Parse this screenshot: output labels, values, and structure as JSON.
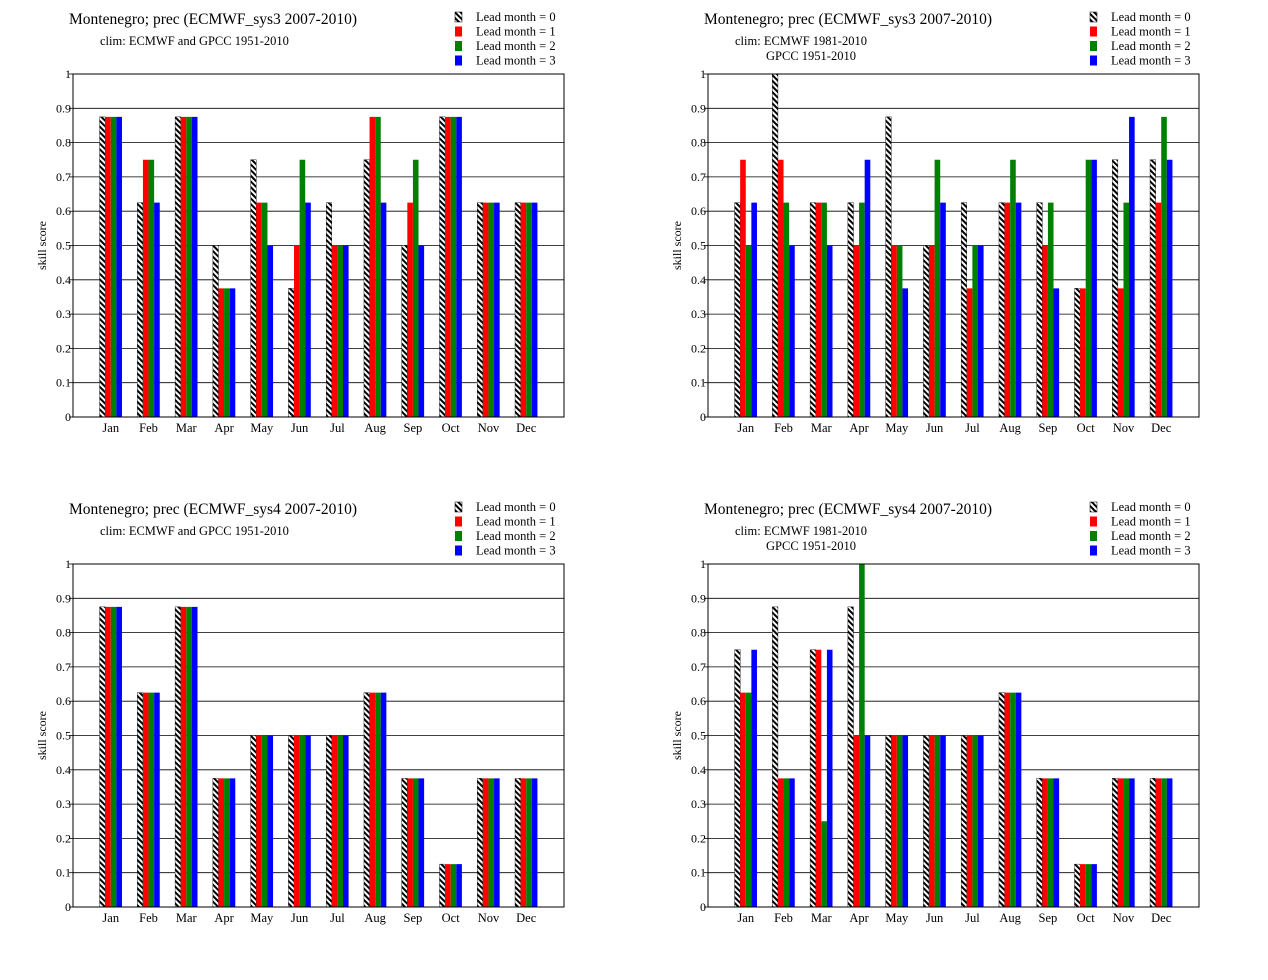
{
  "legend_labels": [
    "Lead month = 0",
    "Lead month = 1",
    "Lead month = 2",
    "Lead month = 3"
  ],
  "colors": {
    "lead0": "hatched black/white",
    "lead1": "#ff0000",
    "lead2": "#008000",
    "lead3": "#0000ff"
  },
  "chart_data": [
    {
      "type": "bar",
      "title": "Montenegro; prec (ECMWF_sys3 2007-2010)",
      "subtitle_lines": [
        "clim: ECMWF and GPCC 1951-2010"
      ],
      "xlabel": "",
      "ylabel": "skill score",
      "ylim": [
        0,
        1
      ],
      "yticks": [
        "0",
        "0.1",
        "0.2",
        "0.3",
        "0.4",
        "0.5",
        "0.6",
        "0.7",
        "0.8",
        "0.9",
        "1"
      ],
      "grid": true,
      "legend_position": "top-right",
      "categories": [
        "Jan",
        "Feb",
        "Mar",
        "Apr",
        "May",
        "Jun",
        "Jul",
        "Aug",
        "Sep",
        "Oct",
        "Nov",
        "Dec"
      ],
      "series": [
        {
          "name": "Lead month = 0",
          "values": [
            0.875,
            0.625,
            0.875,
            0.5,
            0.75,
            0.375,
            0.625,
            0.75,
            0.5,
            0.875,
            0.625,
            0.625
          ]
        },
        {
          "name": "Lead month = 1",
          "values": [
            0.875,
            0.75,
            0.875,
            0.375,
            0.625,
            0.5,
            0.5,
            0.875,
            0.625,
            0.875,
            0.625,
            0.625
          ]
        },
        {
          "name": "Lead month = 2",
          "values": [
            0.875,
            0.75,
            0.875,
            0.375,
            0.625,
            0.75,
            0.5,
            0.875,
            0.75,
            0.875,
            0.625,
            0.625
          ]
        },
        {
          "name": "Lead month = 3",
          "values": [
            0.875,
            0.625,
            0.875,
            0.375,
            0.5,
            0.625,
            0.5,
            0.625,
            0.5,
            0.875,
            0.625,
            0.625
          ]
        }
      ]
    },
    {
      "type": "bar",
      "title": "Montenegro; prec (ECMWF_sys3 2007-2010)",
      "subtitle_lines": [
        "clim: ECMWF 1981-2010",
        "GPCC 1951-2010"
      ],
      "xlabel": "",
      "ylabel": "skill score",
      "ylim": [
        0,
        1
      ],
      "yticks": [
        "0",
        "0.1",
        "0.2",
        "0.3",
        "0.4",
        "0.5",
        "0.6",
        "0.7",
        "0.8",
        "0.9",
        "1"
      ],
      "grid": true,
      "legend_position": "top-right",
      "categories": [
        "Jan",
        "Feb",
        "Mar",
        "Apr",
        "May",
        "Jun",
        "Jul",
        "Aug",
        "Sep",
        "Oct",
        "Nov",
        "Dec"
      ],
      "series": [
        {
          "name": "Lead month = 0",
          "values": [
            0.625,
            1.0,
            0.625,
            0.625,
            0.875,
            0.5,
            0.625,
            0.625,
            0.625,
            0.375,
            0.75,
            0.75
          ]
        },
        {
          "name": "Lead month = 1",
          "values": [
            0.75,
            0.75,
            0.625,
            0.5,
            0.5,
            0.5,
            0.375,
            0.625,
            0.5,
            0.375,
            0.375,
            0.625
          ]
        },
        {
          "name": "Lead month = 2",
          "values": [
            0.5,
            0.625,
            0.625,
            0.625,
            0.5,
            0.75,
            0.5,
            0.75,
            0.625,
            0.75,
            0.625,
            0.875
          ]
        },
        {
          "name": "Lead month = 3",
          "values": [
            0.625,
            0.5,
            0.5,
            0.75,
            0.375,
            0.625,
            0.5,
            0.625,
            0.375,
            0.75,
            0.875,
            0.75
          ]
        }
      ]
    },
    {
      "type": "bar",
      "title": "Montenegro; prec (ECMWF_sys4 2007-2010)",
      "subtitle_lines": [
        "clim: ECMWF and GPCC 1951-2010"
      ],
      "xlabel": "",
      "ylabel": "skill score",
      "ylim": [
        0,
        1
      ],
      "yticks": [
        "0",
        "0.1",
        "0.2",
        "0.3",
        "0.4",
        "0.5",
        "0.6",
        "0.7",
        "0.8",
        "0.9",
        "1"
      ],
      "grid": true,
      "legend_position": "top-right",
      "categories": [
        "Jan",
        "Feb",
        "Mar",
        "Apr",
        "May",
        "Jun",
        "Jul",
        "Aug",
        "Sep",
        "Oct",
        "Nov",
        "Dec"
      ],
      "series": [
        {
          "name": "Lead month = 0",
          "values": [
            0.875,
            0.625,
            0.875,
            0.375,
            0.5,
            0.5,
            0.5,
            0.625,
            0.375,
            0.125,
            0.375,
            0.375
          ]
        },
        {
          "name": "Lead month = 1",
          "values": [
            0.875,
            0.625,
            0.875,
            0.375,
            0.5,
            0.5,
            0.5,
            0.625,
            0.375,
            0.125,
            0.375,
            0.375
          ]
        },
        {
          "name": "Lead month = 2",
          "values": [
            0.875,
            0.625,
            0.875,
            0.375,
            0.5,
            0.5,
            0.5,
            0.625,
            0.375,
            0.125,
            0.375,
            0.375
          ]
        },
        {
          "name": "Lead month = 3",
          "values": [
            0.875,
            0.625,
            0.875,
            0.375,
            0.5,
            0.5,
            0.5,
            0.625,
            0.375,
            0.125,
            0.375,
            0.375
          ]
        }
      ]
    },
    {
      "type": "bar",
      "title": "Montenegro; prec (ECMWF_sys4 2007-2010)",
      "subtitle_lines": [
        "clim: ECMWF 1981-2010",
        "GPCC 1951-2010"
      ],
      "xlabel": "",
      "ylabel": "skill score",
      "ylim": [
        0,
        1
      ],
      "yticks": [
        "0",
        "0.1",
        "0.2",
        "0.3",
        "0.4",
        "0.5",
        "0.6",
        "0.7",
        "0.8",
        "0.9",
        "1"
      ],
      "grid": true,
      "legend_position": "top-right",
      "categories": [
        "Jan",
        "Feb",
        "Mar",
        "Apr",
        "May",
        "Jun",
        "Jul",
        "Aug",
        "Sep",
        "Oct",
        "Nov",
        "Dec"
      ],
      "series": [
        {
          "name": "Lead month = 0",
          "values": [
            0.75,
            0.875,
            0.75,
            0.875,
            0.5,
            0.5,
            0.5,
            0.625,
            0.375,
            0.125,
            0.375,
            0.375
          ]
        },
        {
          "name": "Lead month = 1",
          "values": [
            0.625,
            0.375,
            0.75,
            0.5,
            0.5,
            0.5,
            0.5,
            0.625,
            0.375,
            0.125,
            0.375,
            0.375
          ]
        },
        {
          "name": "Lead month = 2",
          "values": [
            0.625,
            0.375,
            0.25,
            1.0,
            0.5,
            0.5,
            0.5,
            0.625,
            0.375,
            0.125,
            0.375,
            0.375
          ]
        },
        {
          "name": "Lead month = 3",
          "values": [
            0.75,
            0.375,
            0.75,
            0.5,
            0.5,
            0.5,
            0.5,
            0.625,
            0.375,
            0.125,
            0.375,
            0.375
          ]
        }
      ]
    }
  ]
}
